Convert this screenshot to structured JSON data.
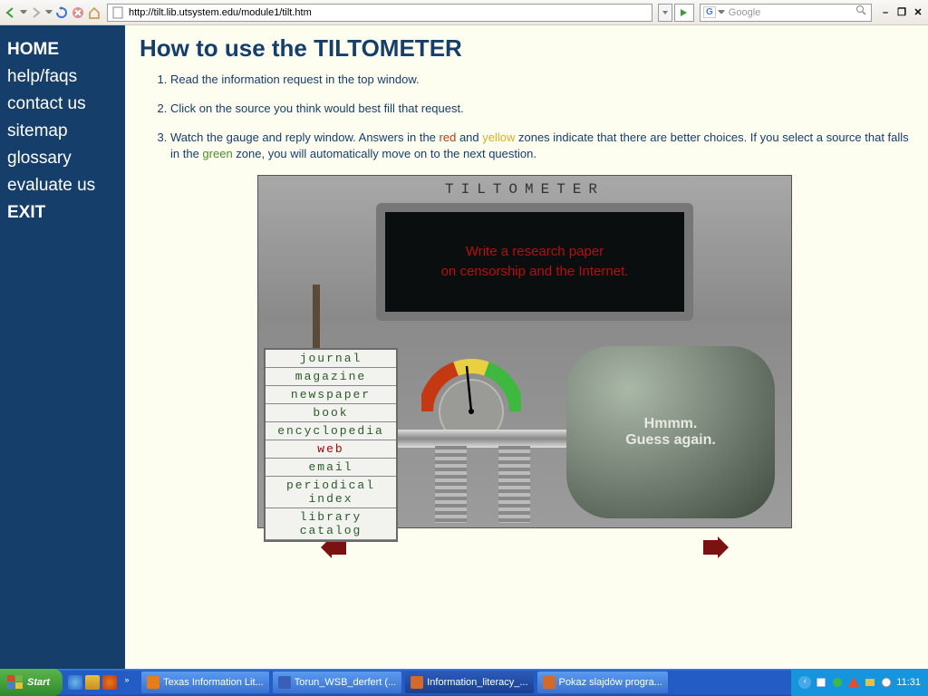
{
  "browser": {
    "url": "http://tilt.lib.utsystem.edu/module1/tilt.htm",
    "search_placeholder": "Google"
  },
  "sidebar": {
    "items": [
      "HOME",
      "help/faqs",
      "contact us",
      "sitemap",
      "glossary",
      "evaluate us",
      "EXIT"
    ],
    "bold": [
      0,
      6
    ]
  },
  "page": {
    "title": "How to use the TILTOMETER",
    "steps": {
      "s1": "Read the information request in the top window.",
      "s2": "Click on the source you think would best fill that request.",
      "s3a": "Watch the gauge and reply window. Answers in the ",
      "s3b": " and ",
      "s3c": " zones indicate that there are better choices. If you select a source that falls in the ",
      "s3d": " zone, you will automatically move on to the next question.",
      "red": "red",
      "yellow": "yellow",
      "green": "green"
    }
  },
  "device": {
    "title": "TILTOMETER",
    "prompt1": "Write a research paper",
    "prompt2": "on censorship and the Internet.",
    "sources": [
      "journal",
      "magazine",
      "newspaper",
      "book",
      "encyclopedia",
      "web",
      "email",
      "periodical index",
      "library catalog"
    ],
    "selected_index": 5,
    "reply1": "Hmmm.",
    "reply2": "Guess again.",
    "gauge_colors": {
      "red": "#c43812",
      "yellow": "#e8d040",
      "green": "#3fb83f",
      "face": "#d8d8d4"
    }
  },
  "taskbar": {
    "start": "Start",
    "tasks": [
      {
        "label": "Texas Information Lit...",
        "active": false,
        "color": "#e87b1a"
      },
      {
        "label": "Torun_WSB_derfert (...",
        "active": false,
        "color": "#3a5fbb"
      },
      {
        "label": "Information_literacy_...",
        "active": true,
        "color": "#d46a2a"
      },
      {
        "label": "Pokaz slajdów progra...",
        "active": false,
        "color": "#d46a2a"
      }
    ],
    "clock": "11:31"
  }
}
